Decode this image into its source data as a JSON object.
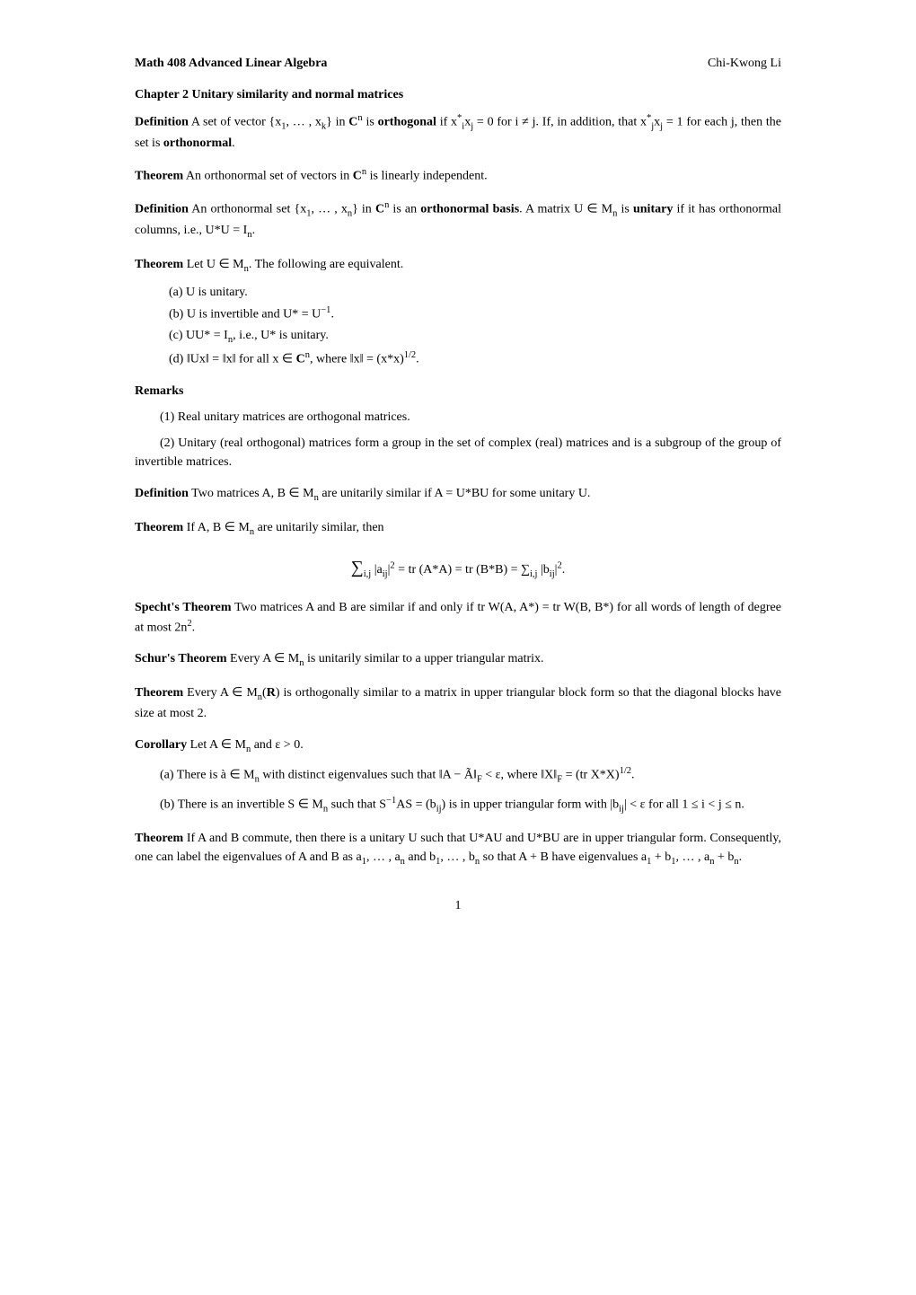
{
  "header": {
    "course": "Math 408 Advanced Linear Algebra",
    "author": "Chi-Kwong Li"
  },
  "chapter": "Chapter 2 Unitary similarity and normal matrices",
  "def1_label": "Definition",
  "def1_text1": " A set of vector {x",
  "def1_text2": ", … , x",
  "def1_text3": "} in ",
  "def1_text4": " is ",
  "def1_orthogonal": "orthogonal",
  "def1_text5": " if x",
  "def1_text6": "x",
  "def1_text7": " = 0 for i ≠ j. If, in addition, that x",
  "def1_text8": "x",
  "def1_text9": " = 1 for each j, then the set is ",
  "def1_orthonormal": "orthonormal",
  "def1_period": ".",
  "thm1_label": "Theorem",
  "thm1_text": " An orthonormal set of vectors in ",
  "thm1_text2": " is linearly independent.",
  "def2_label": "Definition",
  "def2_text1": " An orthonormal set {x",
  "def2_text2": ", … , x",
  "def2_text3": "} in ",
  "def2_text4": " is an ",
  "def2_basis": "orthonormal basis",
  "def2_text5": ". A matrix U ∈ M",
  "def2_text6": " is ",
  "def2_unitary": "unitary",
  "def2_text7": " if it has orthonormal columns, i.e., U*U = I",
  "def2_period": ".",
  "thm2_label": "Theorem",
  "thm2_text": " Let U ∈ M",
  "thm2_text2": ". The following are equivalent.",
  "item_a": "(a) U is unitary.",
  "item_b": "(b) U is invertible and U* = U",
  "item_b2": ".",
  "item_c": "(c) UU* = I",
  "item_c2": ", i.e., U* is unitary.",
  "item_d": "(d) ‖Ux‖ = ‖x‖ for all x ∈ ",
  "item_d2": ", where ‖x‖ = (x*x)",
  "item_d3": ".",
  "remarks_label": "Remarks",
  "remark1": "(1) Real unitary matrices are orthogonal matrices.",
  "remark2": "(2) Unitary (real orthogonal) matrices form a group in the set of complex (real) matrices and is a subgroup of the group of invertible matrices.",
  "def3_label": "Definition",
  "def3_text": " Two matrices A, B ∈ M",
  "def3_text2": " are unitarily similar if A = U*BU for some unitary U.",
  "thm3_label": "Theorem",
  "thm3_text": " If A, B ∈ M",
  "thm3_text2": " are unitarily similar, then",
  "equation": "∑",
  "eq_sub1": "i,j",
  "eq_mid1": " |a",
  "eq_sub2": "ij",
  "eq_mid2": "|",
  "eq_sup1": "2",
  "eq_mid3": " = tr (A*A) = tr (B*B) = ∑",
  "eq_sub3": "i,j",
  "eq_mid4": " |b",
  "eq_sub4": "ij",
  "eq_mid5": "|",
  "eq_sup2": "2",
  "eq_end": ".",
  "specht_label": "Specht's Theorem",
  "specht_text": " Two matrices A and B are similar if and only if tr W(A, A*) = tr W(B, B*) for all words of length of degree at most 2n",
  "specht_text2": ".",
  "schur_label": "Schur's Theorem",
  "schur_text": " Every A ∈ M",
  "schur_text2": " is unitarily similar to a upper triangular matrix.",
  "thm4_label": "Theorem",
  "thm4_text": " Every A ∈ M",
  "thm4_text2": "(",
  "thm4_R": "R",
  "thm4_text3": ") is orthogonally similar to a matrix in upper triangular block form so that the diagonal blocks have size at most 2.",
  "cor_label": "Corollary",
  "cor_text": " Let A ∈ M",
  "cor_text2": " and ε > 0.",
  "cor_a": "(a) There is à ∈ M",
  "cor_a2": " with distinct eigenvalues such that ‖A − Ã‖",
  "cor_a3": " < ε, where ‖X‖",
  "cor_a4": " = (tr X*X)",
  "cor_a5": ".",
  "cor_b": "(b) There is an invertible S ∈ M",
  "cor_b2": " such that S",
  "cor_b3": "AS = (b",
  "cor_b4": ") is in upper triangular form with |b",
  "cor_b5": "| < ε for all 1 ≤ i < j ≤ n.",
  "thm5_label": "Theorem",
  "thm5_text": " If A and B commute, then there is a unitary U such that U*AU and U*BU are in upper triangular form. Consequently, one can label the eigenvalues of A and B as a",
  "thm5_text2": ", … , a",
  "thm5_text3": " and b",
  "thm5_text4": ", … , b",
  "thm5_text5": " so that A + B have eigenvalues a",
  "thm5_text6": " + b",
  "thm5_text7": ", … , a",
  "thm5_text8": " + b",
  "thm5_text9": ".",
  "page_number": "1",
  "sym": {
    "C": "C",
    "R": "R",
    "n": "n",
    "k": "k",
    "one": "1",
    "i": "i",
    "j": "j",
    "star": "*",
    "neg1": "−1",
    "half": "1/2",
    "two": "2",
    "F": "F",
    "ij": "ij"
  }
}
